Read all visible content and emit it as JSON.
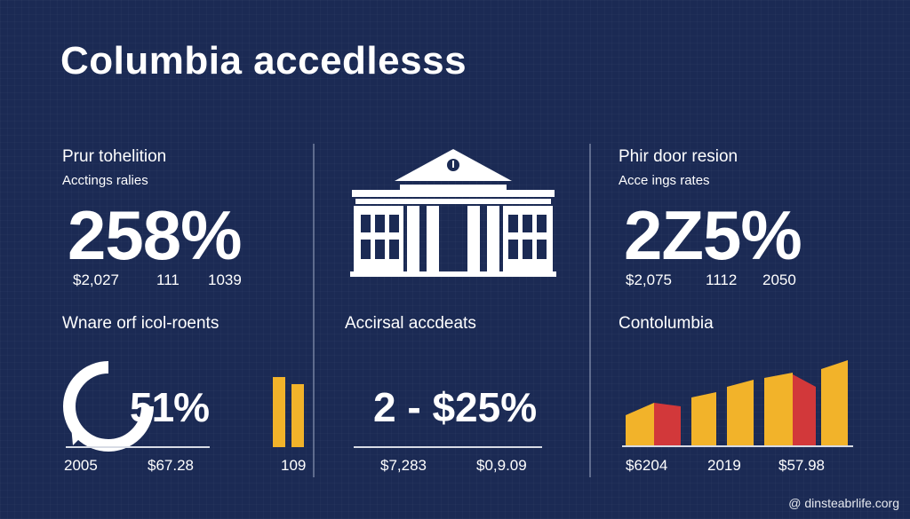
{
  "title": "Columbia accedlesss",
  "left": {
    "heading": "Prur tohelition",
    "subheading": "Acctings ralies",
    "big_value": "258%",
    "stats": [
      "$2,027",
      "111",
      "1039"
    ],
    "lower_heading": "Wnare orf icol-roents",
    "ring_value": "51%",
    "bottom_stats": [
      "2005",
      "$67.28",
      "109"
    ]
  },
  "center": {
    "icon": "building-icon",
    "lower_heading": "Accirsal accdeats",
    "big_value": "2 - $25%",
    "bottom_stats": [
      "$7,283",
      "$0,9.09"
    ]
  },
  "right": {
    "heading": "Phir door resion",
    "subheading": "Acce ings rates",
    "big_value": "2Z5%",
    "stats": [
      "$2,075",
      "1112",
      "2050"
    ],
    "lower_heading": "Contolumbia",
    "bottom_stats": [
      "$6204",
      "2019",
      "$57.98"
    ]
  },
  "footer": "@ dinsteabrlife.corg",
  "colors": {
    "background": "#1b2a54",
    "accent_yellow": "#f2b32a",
    "accent_red": "#d2383a",
    "text": "#ffffff"
  }
}
